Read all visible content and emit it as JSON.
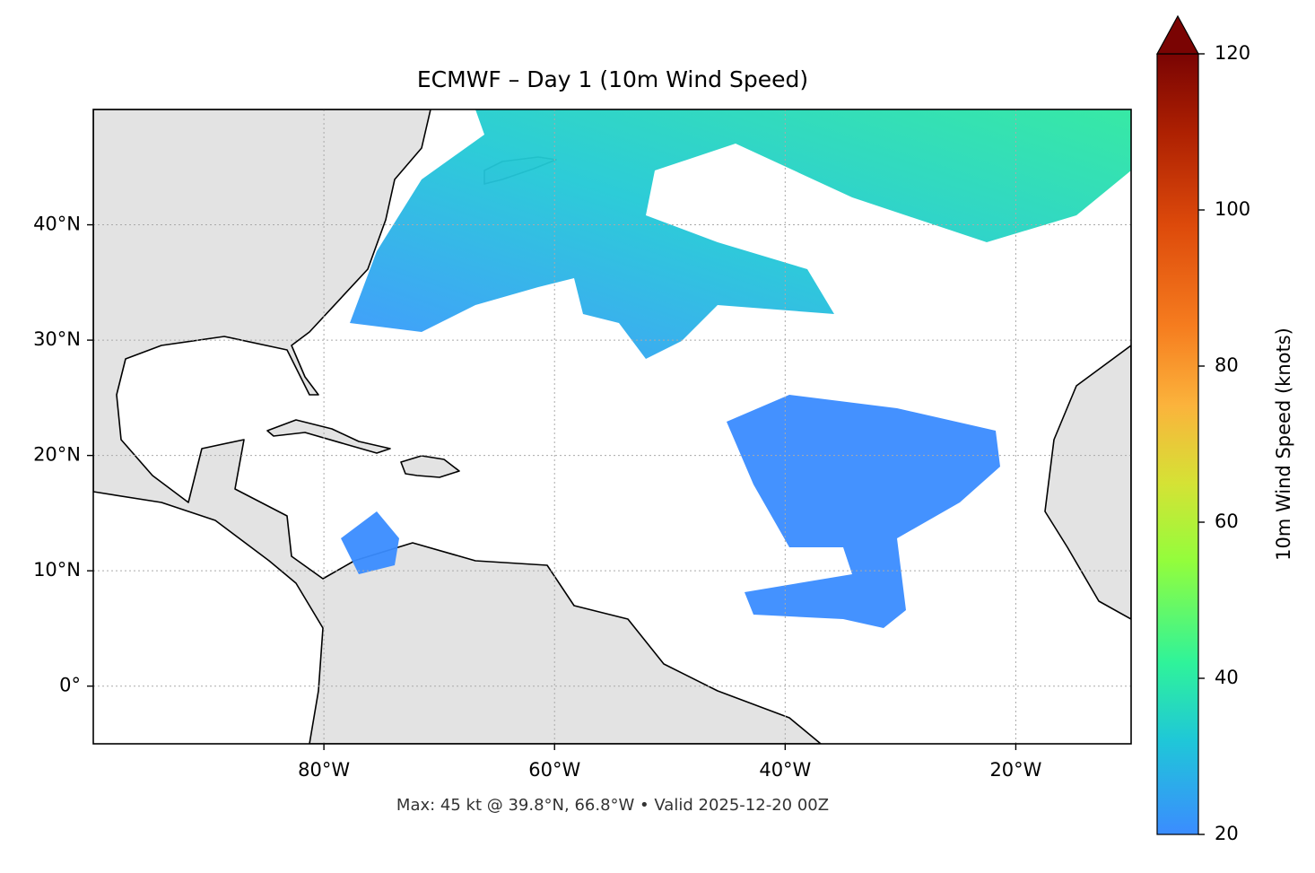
{
  "chart_data": {
    "type": "map",
    "title": "ECMWF – Day 1 (10m Wind Speed)",
    "caption": "Max: 45 kt @ 39.8°N, 66.8°W • Valid 2025-12-20 00Z",
    "xlim": [
      -100,
      -10
    ],
    "ylim": [
      -5,
      50
    ],
    "xticks": [
      {
        "value": -80,
        "label": "80°W"
      },
      {
        "value": -60,
        "label": "60°W"
      },
      {
        "value": -40,
        "label": "40°W"
      },
      {
        "value": -20,
        "label": "20°W"
      }
    ],
    "yticks": [
      {
        "value": 0,
        "label": "0°"
      },
      {
        "value": 10,
        "label": "10°N"
      },
      {
        "value": 20,
        "label": "20°N"
      },
      {
        "value": 30,
        "label": "30°N"
      },
      {
        "value": 40,
        "label": "40°N"
      }
    ],
    "grid": true,
    "colorbar": {
      "label": "10m Wind Speed (knots)",
      "lim": [
        20,
        120
      ],
      "ticks": [
        20,
        40,
        60,
        80,
        100,
        120
      ]
    }
  }
}
